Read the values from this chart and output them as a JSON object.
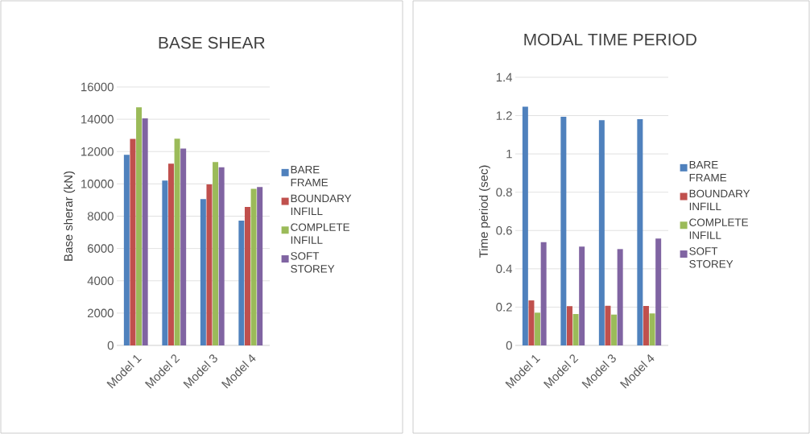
{
  "chart_data": [
    {
      "type": "bar",
      "title": "BASE SHEAR",
      "ylabel": "Base sherar (kN)",
      "categories": [
        "Model 1",
        "Model 2",
        "Model 3",
        "Model 4"
      ],
      "series": [
        {
          "name": "BARE FRAME",
          "color": "#4f81bd",
          "values": [
            11800,
            10200,
            9060,
            7730
          ]
        },
        {
          "name": "BOUNDARY INFILL",
          "color": "#c0504d",
          "values": [
            12790,
            11250,
            9970,
            8570
          ]
        },
        {
          "name": "COMPLETE INFILL",
          "color": "#9bbb59",
          "values": [
            14740,
            12800,
            11350,
            9690
          ]
        },
        {
          "name": "SOFT STOREY",
          "color": "#8064a2",
          "values": [
            14060,
            12180,
            11030,
            9810
          ]
        }
      ],
      "ylim": [
        0,
        16000
      ],
      "yticks": [
        0,
        2000,
        4000,
        6000,
        8000,
        10000,
        12000,
        14000,
        16000
      ],
      "grid": "y",
      "legend": "right"
    },
    {
      "type": "bar",
      "title": "MODAL TIME PERIOD",
      "ylabel": "Time period (sec)",
      "categories": [
        "Model 1",
        "Model 2",
        "Model 3",
        "Model 4"
      ],
      "series": [
        {
          "name": "BARE FRAME",
          "color": "#4f81bd",
          "values": [
            1.247,
            1.194,
            1.176,
            1.181
          ]
        },
        {
          "name": "BOUNDARY INFILL",
          "color": "#c0504d",
          "values": [
            0.235,
            0.205,
            0.207,
            0.206
          ]
        },
        {
          "name": "COMPLETE INFILL",
          "color": "#9bbb59",
          "values": [
            0.171,
            0.164,
            0.161,
            0.167
          ]
        },
        {
          "name": "SOFT STOREY",
          "color": "#8064a2",
          "values": [
            0.539,
            0.516,
            0.503,
            0.558
          ]
        }
      ],
      "ylim": [
        0,
        1.4
      ],
      "yticks": [
        0,
        0.2,
        0.4,
        0.6,
        0.8,
        1,
        1.2,
        1.4
      ],
      "grid": "y",
      "legend": "right"
    }
  ]
}
